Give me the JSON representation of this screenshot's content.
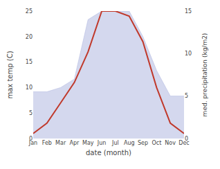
{
  "chart_data": {
    "type": "line",
    "categories": [
      "Jan",
      "Feb",
      "Mar",
      "Apr",
      "May",
      "Jun",
      "Jul",
      "Aug",
      "Sep",
      "Oct",
      "Nov",
      "Dec"
    ],
    "xlabel": "date (month)",
    "ylabel": "max temp (C)",
    "y2label": "med. precipitation (kg/m2)",
    "series": [
      {
        "type": "area",
        "axis": "y2",
        "color": "#b0b8e0",
        "values": [
          5.5,
          5.5,
          6.0,
          7.0,
          14.0,
          15.0,
          15.0,
          15.0,
          12.0,
          8.0,
          5.0,
          5.0
        ]
      },
      {
        "type": "line",
        "color": "#c0392b",
        "values": [
          1,
          3,
          7,
          11,
          17,
          25,
          25,
          24,
          19,
          10,
          3,
          1
        ]
      }
    ],
    "ylim": [
      0,
      25
    ],
    "yticks": [
      0,
      5,
      10,
      15,
      20,
      25
    ],
    "y2lim": [
      0,
      15
    ],
    "y2ticks": [
      0,
      5,
      10,
      15
    ],
    "grid": false
  }
}
